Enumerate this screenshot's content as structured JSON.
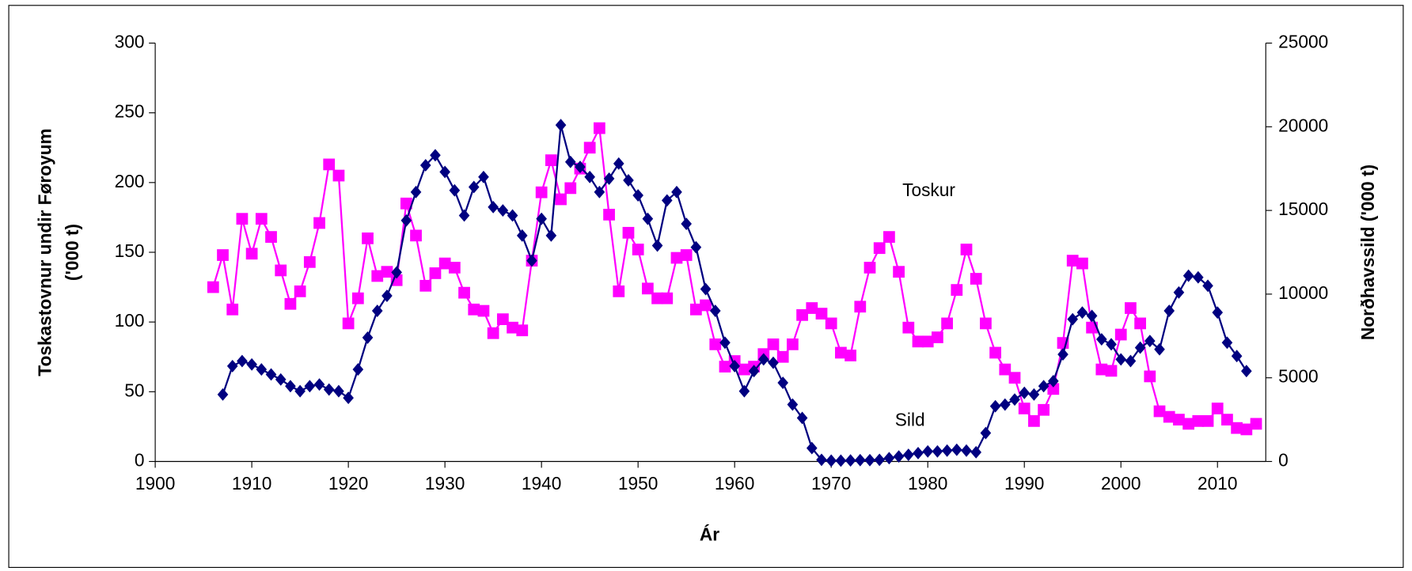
{
  "chart_data": {
    "type": "line",
    "x_label": "Ár",
    "y_label": [
      "Toskastovnur undir Føroyum",
      "('000 t)"
    ],
    "y2_label": "Norðhavssild ('000 t)",
    "x": [
      1906,
      1907,
      1908,
      1909,
      1910,
      1911,
      1912,
      1913,
      1914,
      1915,
      1916,
      1917,
      1918,
      1919,
      1920,
      1921,
      1922,
      1923,
      1924,
      1925,
      1926,
      1927,
      1928,
      1929,
      1930,
      1931,
      1932,
      1933,
      1934,
      1935,
      1936,
      1937,
      1938,
      1939,
      1940,
      1941,
      1942,
      1943,
      1944,
      1945,
      1946,
      1947,
      1948,
      1949,
      1950,
      1951,
      1952,
      1953,
      1954,
      1955,
      1956,
      1957,
      1958,
      1959,
      1960,
      1961,
      1962,
      1963,
      1964,
      1965,
      1966,
      1967,
      1968,
      1969,
      1970,
      1971,
      1972,
      1973,
      1974,
      1975,
      1976,
      1977,
      1978,
      1979,
      1980,
      1981,
      1982,
      1983,
      1984,
      1985,
      1986,
      1987,
      1988,
      1989,
      1990,
      1991,
      1992,
      1993,
      1994,
      1995,
      1996,
      1997,
      1998,
      1999,
      2000,
      2001,
      2002,
      2003,
      2004,
      2005,
      2006,
      2007,
      2008,
      2009,
      2010,
      2011,
      2012,
      2013,
      2014
    ],
    "series": [
      {
        "name": "Toskur",
        "color": "#ff00ff",
        "marker": "square",
        "values": [
          125,
          148,
          109,
          174,
          149,
          174,
          161,
          137,
          113,
          122,
          143,
          171,
          213,
          205,
          99,
          117,
          160,
          133,
          136,
          130,
          185,
          162,
          126,
          135,
          142,
          139,
          121,
          109,
          108,
          92,
          102,
          96,
          94,
          144,
          193,
          216,
          188,
          196,
          210,
          225,
          239,
          177,
          122,
          164,
          152,
          124,
          117,
          117,
          146,
          148,
          109,
          112,
          84,
          68,
          72,
          66,
          68,
          77,
          84,
          75,
          84,
          105,
          110,
          106,
          99,
          78,
          76,
          111,
          139,
          153,
          161,
          136,
          96,
          86,
          86,
          89,
          99,
          123,
          152,
          131,
          99,
          78,
          66,
          60,
          38,
          29,
          37,
          52,
          85,
          144,
          142,
          96,
          66,
          65,
          91,
          110,
          99,
          61,
          36,
          32,
          30,
          27,
          29,
          29,
          38,
          30,
          24,
          23,
          27
        ]
      },
      {
        "name": "Sild",
        "color": "#000080",
        "marker": "diamond",
        "axis": "y2",
        "values": [
          null,
          4000,
          5700,
          6000,
          5800,
          5500,
          5200,
          4900,
          4500,
          4200,
          4500,
          4600,
          4300,
          4200,
          3800,
          5500,
          7400,
          9000,
          9900,
          11300,
          14400,
          16100,
          17700,
          18300,
          17300,
          16200,
          14700,
          16400,
          17000,
          15200,
          15000,
          14700,
          13500,
          12000,
          14500,
          13500,
          20100,
          17900,
          17600,
          17000,
          16100,
          16900,
          17800,
          16800,
          15900,
          14500,
          12900,
          15600,
          16100,
          14200,
          12800,
          10300,
          9000,
          7100,
          5700,
          4200,
          5400,
          6100,
          5900,
          4700,
          3400,
          2600,
          800,
          100,
          50,
          50,
          60,
          80,
          80,
          100,
          200,
          300,
          400,
          500,
          600,
          600,
          650,
          700,
          650,
          550,
          1700,
          3300,
          3400,
          3700,
          4100,
          4000,
          4500,
          4800,
          6400,
          8500,
          8900,
          8700,
          7300,
          7000,
          6100,
          6000,
          6800,
          7200,
          6700,
          9000,
          10100,
          11100,
          11000,
          10500,
          8900,
          7100,
          6300,
          5400,
          null
        ]
      }
    ],
    "xlim": [
      1900,
      2015
    ],
    "xticks": [
      1900,
      1910,
      1920,
      1930,
      1940,
      1950,
      1960,
      1970,
      1980,
      1990,
      2000,
      2010
    ],
    "ylim": [
      0,
      300
    ],
    "yticks": [
      0,
      50,
      100,
      150,
      200,
      250,
      300
    ],
    "y2lim": [
      0,
      25000
    ],
    "y2ticks": [
      0,
      5000,
      10000,
      15000,
      20000,
      25000
    ],
    "grid": false
  }
}
